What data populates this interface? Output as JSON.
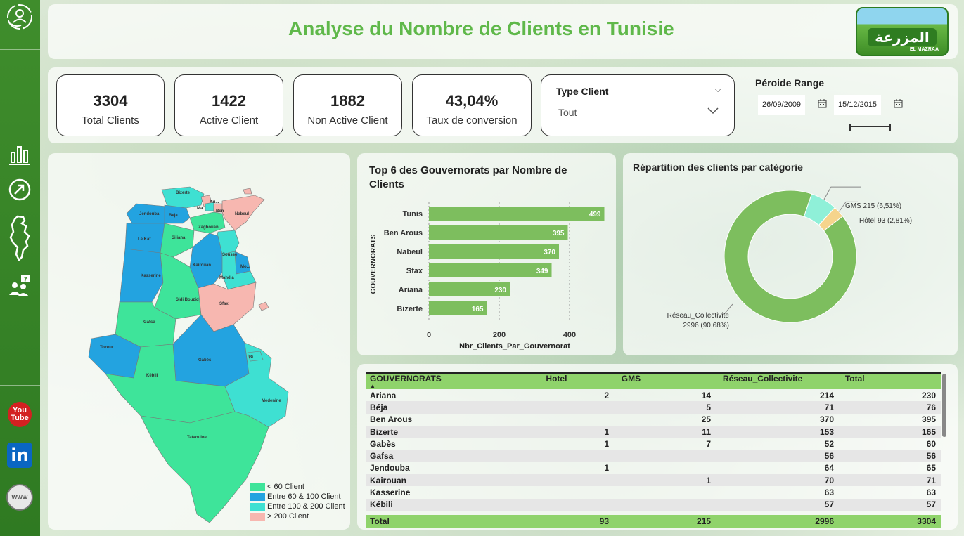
{
  "header": {
    "title": "Analyse du Nombre de Clients en Tunisie"
  },
  "logo": {
    "arabic": "المزرعة",
    "latin": "EL MAZRAA"
  },
  "kpis": [
    {
      "value": "3304",
      "label": "Total Clients"
    },
    {
      "value": "1422",
      "label": "Active Client"
    },
    {
      "value": "1882",
      "label": "Non Active Client"
    },
    {
      "value": "43,04%",
      "label": "Taux de conversion"
    }
  ],
  "type_client": {
    "title": "Type Client",
    "selected": "Tout"
  },
  "period": {
    "title": "Péroide Range",
    "start": "26/09/2009",
    "end": "15/12/2015"
  },
  "sidebar": {
    "icons": [
      "user-cycle-icon",
      "bar-chart-icon",
      "growth-icon",
      "tunisia-map-icon",
      "users-question-icon"
    ],
    "social": {
      "youtube_top": "You",
      "youtube_bottom": "Tube",
      "linkedin": "in",
      "web": "WWW"
    }
  },
  "map": {
    "colors": {
      "lt60": "#3ee49a",
      "60_100": "#23a3e0",
      "100_200": "#3ee0d2",
      "gt200": "#f7b7b0"
    },
    "legend": [
      "< 60 Client",
      "Entre 60 & 100 Client",
      "Entre 100 & 200 Client",
      "> 200 Client"
    ],
    "labels": {
      "bizerte": "Bizerte",
      "ari": "Ari...",
      "ma": "Ma...",
      "ben": "Ben",
      "nabeul": "Nabeul",
      "jendouba": "Jendouba",
      "beja": "Beja",
      "zaghouan": "Zaghouan",
      "lekaf": "Le Kaf",
      "siliana": "Siliana",
      "sousse": "Sousse",
      "kairouan": "Kairouan",
      "mo": "Mo...",
      "mahdia": "Mahdia",
      "kasserine": "Kasserine",
      "sidibouzid": "Sidi Bouzid",
      "sfax": "Sfax",
      "gafsa": "Gafsa",
      "tozeur": "Tozeur",
      "gabes": "Gabès",
      "kebili": "Kébili",
      "medenine": "Medenine",
      "tataouine": "Tataouine",
      "bi": "Bi..."
    }
  },
  "bar_chart": {
    "title": "Top 6 des Gouvernorats par Nombre de Clients",
    "title_line1": "Top 6 des Gouvernorats par Nombre de",
    "title_line2": "Clients"
  },
  "chart_data": [
    {
      "type": "bar",
      "orientation": "horizontal",
      "title": "Top 6 des Gouvernorats par Nombre de Clients",
      "categories": [
        "Tunis",
        "Ben Arous",
        "Nabeul",
        "Sfax",
        "Ariana",
        "Bizerte"
      ],
      "values": [
        499,
        395,
        370,
        349,
        230,
        165
      ],
      "xlabel": "Nbr_Clients_Par_Gouvernorat",
      "ylabel": "GOUVERNORATS",
      "xlim": [
        0,
        500
      ],
      "xticks": [
        "0",
        "200",
        "400"
      ],
      "color": "#7dbe5e",
      "grid": true
    },
    {
      "type": "pie",
      "donut": true,
      "title": "Répartition des clients par catégorie",
      "categories": [
        "Réseau_Collectivite",
        "GMS",
        "Hôtel"
      ],
      "values": [
        2996,
        215,
        93
      ],
      "percent": [
        90.68,
        6.51,
        2.81
      ],
      "labels": [
        "Réseau_Collectivite 2996 (90,68%)",
        "GMS 215 (6,51%)",
        "Hôtel 93 (2,81%)"
      ],
      "label_lines": [
        [
          "Réseau_Collectivite",
          "2996 (90,68%)"
        ],
        [
          "GMS 215 (6,51%)"
        ],
        [
          "Hôtel 93 (2,81%)"
        ]
      ],
      "colors": [
        "#7dbe5e",
        "#8ff0d8",
        "#f5d48c"
      ]
    }
  ],
  "table": {
    "columns": [
      "GOUVERNORATS",
      "Hotel",
      "GMS",
      "Réseau_Collectivite",
      "Total"
    ],
    "sort_indicator": "▲",
    "rows": [
      [
        "Ariana",
        "2",
        "14",
        "214",
        "230"
      ],
      [
        "Béja",
        "",
        "5",
        "71",
        "76"
      ],
      [
        "Ben Arous",
        "",
        "25",
        "370",
        "395"
      ],
      [
        "Bizerte",
        "1",
        "11",
        "153",
        "165"
      ],
      [
        "Gabès",
        "1",
        "7",
        "52",
        "60"
      ],
      [
        "Gafsa",
        "",
        "",
        "56",
        "56"
      ],
      [
        "Jendouba",
        "1",
        "",
        "64",
        "65"
      ],
      [
        "Kairouan",
        "",
        "1",
        "70",
        "71"
      ],
      [
        "Kasserine",
        "",
        "",
        "63",
        "63"
      ],
      [
        "Kébili",
        "",
        "",
        "57",
        "57"
      ]
    ],
    "total": [
      "Total",
      "93",
      "215",
      "2996",
      "3304"
    ]
  }
}
